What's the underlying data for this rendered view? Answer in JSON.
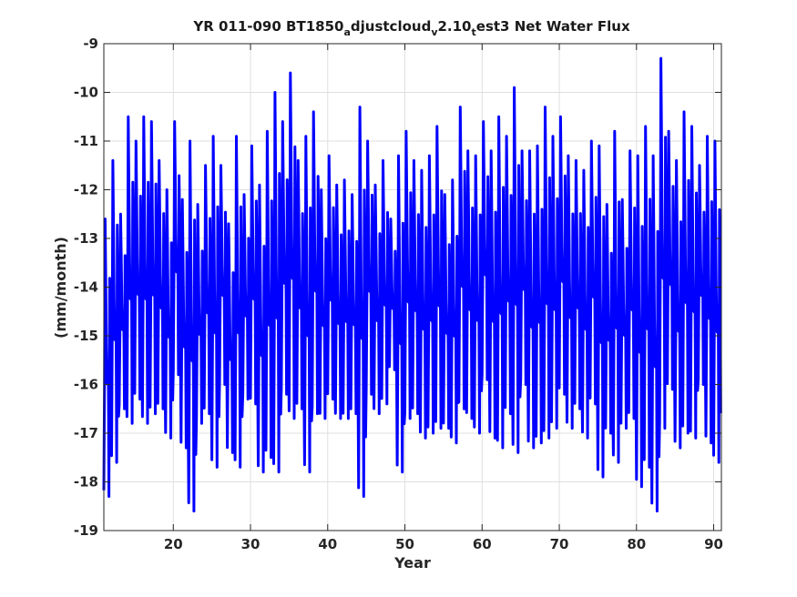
{
  "chart_data": {
    "type": "line",
    "title": {
      "part1": "YR 011-090 BT1850",
      "sub1": "a",
      "part2": "djustcloud",
      "sub2": "v",
      "part3": "2.10",
      "sub3": "t",
      "part4": "est3 Net Water Flux"
    },
    "xlabel": "Year",
    "ylabel": "(mm/month)",
    "xlim": [
      11,
      91
    ],
    "ylim": [
      -19,
      -9
    ],
    "xticks": [
      20,
      30,
      40,
      50,
      60,
      70,
      80,
      90
    ],
    "xtick_labels": [
      "20",
      "30",
      "40",
      "50",
      "60",
      "70",
      "80",
      "90"
    ],
    "yticks": [
      -9,
      -10,
      -11,
      -12,
      -13,
      -14,
      -15,
      -16,
      -17,
      -18,
      -19
    ],
    "ytick_labels": [
      "-9",
      "-10",
      "-11",
      "-12",
      "-13",
      "-14",
      "-15",
      "-16",
      "-17",
      "-18",
      "-19"
    ],
    "grid": true,
    "series_color": "#0000ff",
    "annual_extremes": {
      "years": [
        11,
        12,
        13,
        14,
        15,
        16,
        17,
        18,
        19,
        20,
        21,
        22,
        23,
        24,
        25,
        26,
        27,
        28,
        29,
        30,
        31,
        32,
        33,
        34,
        35,
        36,
        37,
        38,
        39,
        40,
        41,
        42,
        43,
        44,
        45,
        46,
        47,
        48,
        49,
        50,
        51,
        52,
        53,
        54,
        55,
        56,
        57,
        58,
        59,
        60,
        61,
        62,
        63,
        64,
        65,
        66,
        67,
        68,
        69,
        70,
        71,
        72,
        73,
        74,
        75,
        76,
        77,
        78,
        79,
        80,
        81,
        82,
        83,
        84,
        85,
        86,
        87,
        88,
        89,
        90
      ],
      "max": [
        -12.6,
        -11.4,
        -12.5,
        -10.5,
        -11.0,
        -10.5,
        -10.6,
        -11.4,
        -12.0,
        -10.6,
        -12.2,
        -11.0,
        -12.3,
        -11.5,
        -10.9,
        -11.5,
        -12.7,
        -10.9,
        -12.1,
        -11.1,
        -11.9,
        -10.8,
        -10.0,
        -10.6,
        -9.6,
        -11.4,
        -10.9,
        -10.4,
        -12.0,
        -11.3,
        -11.9,
        -11.8,
        -12.1,
        -10.3,
        -11.0,
        -11.9,
        -11.4,
        -12.6,
        -11.3,
        -10.8,
        -11.4,
        -11.6,
        -11.3,
        -10.7,
        -12.1,
        -11.8,
        -10.3,
        -11.2,
        -11.3,
        -10.6,
        -11.2,
        -10.5,
        -10.9,
        -9.9,
        -11.2,
        -11.2,
        -11.1,
        -10.3,
        -10.9,
        -10.5,
        -11.3,
        -11.4,
        -11.6,
        -11.0,
        -11.1,
        -12.3,
        -10.8,
        -12.2,
        -11.2,
        -11.3,
        -10.7,
        -11.3,
        -9.3,
        -10.8,
        -11.4,
        -10.4,
        -10.7,
        -11.5,
        -10.9,
        -11.0
      ],
      "min": [
        -18.3,
        -17.6,
        -16.5,
        -16.8,
        -16.3,
        -16.8,
        -16.6,
        -16.5,
        -17.1,
        -15.8,
        -17.3,
        -18.6,
        -16.8,
        -16.6,
        -17.7,
        -16.0,
        -17.4,
        -17.7,
        -16.3,
        -16.4,
        -17.8,
        -17.5,
        -17.8,
        -16.2,
        -16.7,
        -16.5,
        -17.8,
        -16.6,
        -16.7,
        -16.3,
        -16.7,
        -16.7,
        -16.6,
        -18.3,
        -16.2,
        -16.6,
        -16.4,
        -15.7,
        -17.8,
        -16.7,
        -16.6,
        -17.1,
        -17.0,
        -16.9,
        -16.9,
        -17.2,
        -16.5,
        -16.7,
        -17.0,
        -15.9,
        -17.1,
        -17.3,
        -16.6,
        -17.4,
        -16.0,
        -17.3,
        -17.2,
        -17.1,
        -16.9,
        -16.2,
        -16.9,
        -16.5,
        -17.1,
        -16.4,
        -17.9,
        -17.0,
        -17.6,
        -16.9,
        -16.7,
        -18.1,
        -17.7,
        -18.6,
        -16.9,
        -16.1,
        -17.3,
        -17.0,
        -17.1,
        -16.0,
        -17.2,
        -17.6
      ]
    }
  }
}
